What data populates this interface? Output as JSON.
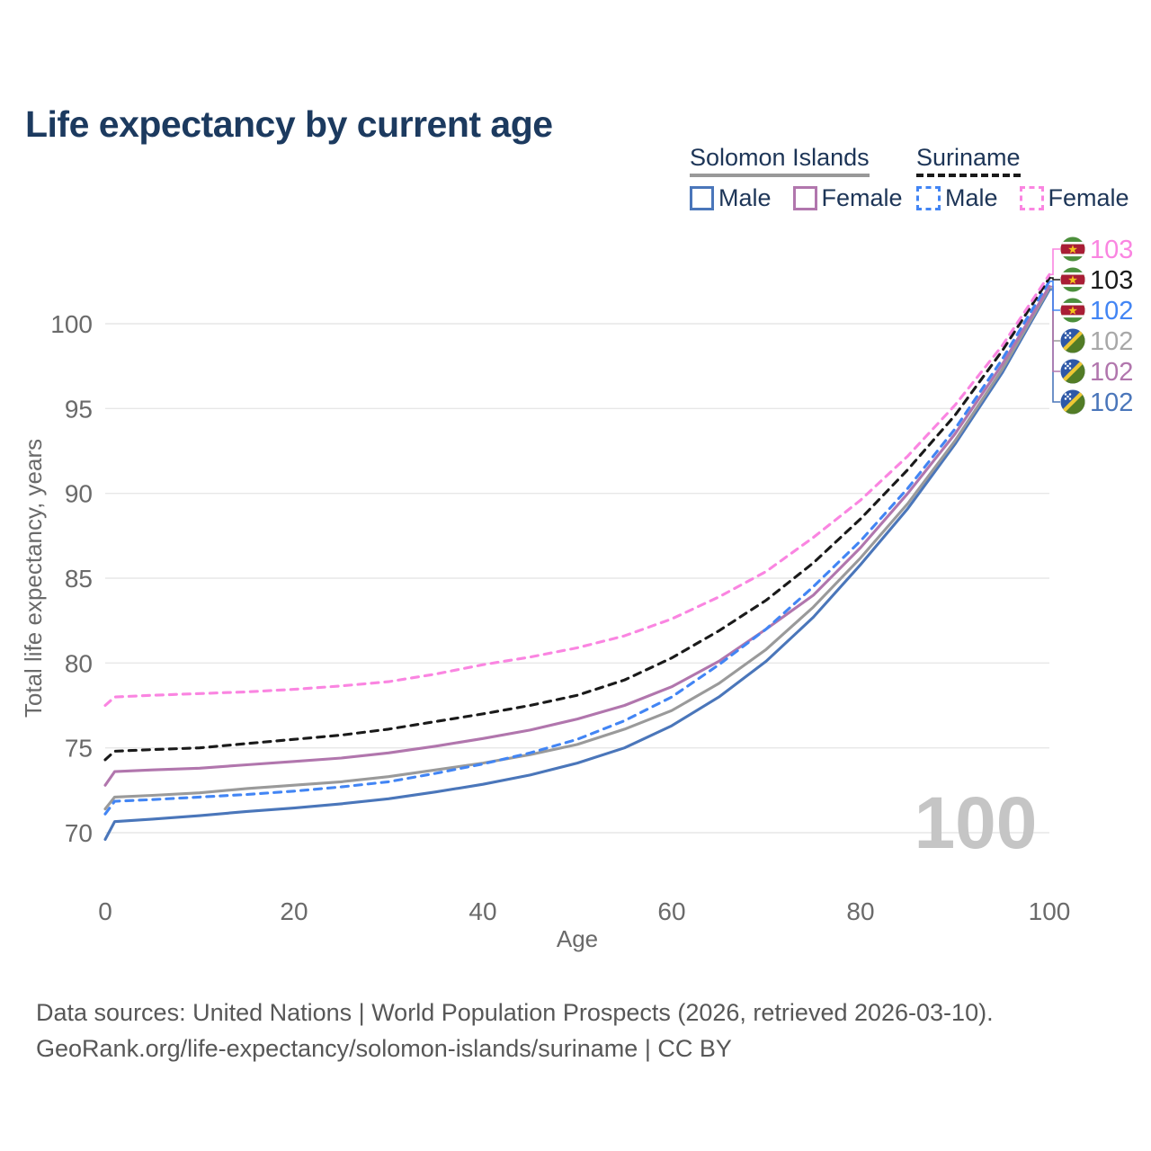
{
  "title": "Life expectancy by current age",
  "legend": {
    "groups": [
      {
        "country": "Solomon Islands",
        "underline_color": "#999999",
        "underline_style": "solid",
        "items": [
          {
            "label": "Male",
            "color": "#4a76ba",
            "dashed": false
          },
          {
            "label": "Female",
            "color": "#b176ad",
            "dashed": false
          }
        ]
      },
      {
        "country": "Suriname",
        "underline_color": "#1a1a1a",
        "underline_style": "dashed",
        "items": [
          {
            "label": "Male",
            "color": "#4285f4",
            "dashed": true
          },
          {
            "label": "Female",
            "color": "#fa85e1",
            "dashed": true
          }
        ]
      }
    ]
  },
  "chart_data": {
    "type": "line",
    "title": "Life expectancy by current age",
    "xlabel": "Age",
    "ylabel": "Total life expectancy, years",
    "xticks": [
      0,
      20,
      40,
      60,
      80,
      100
    ],
    "yticks": [
      70,
      75,
      80,
      85,
      90,
      95,
      100
    ],
    "xlim": [
      0,
      100
    ],
    "ylim": [
      69.5,
      103.5
    ],
    "grid": true,
    "watermark": "100",
    "x": [
      0,
      1,
      5,
      10,
      15,
      20,
      25,
      30,
      35,
      40,
      45,
      50,
      55,
      60,
      65,
      70,
      75,
      80,
      85,
      90,
      95,
      100
    ],
    "series": [
      {
        "name": "Solomon Islands Male",
        "slug": "solomon-islands-male",
        "flag": "solomon-islands",
        "color": "#4a76ba",
        "dashed": false,
        "row": 5,
        "end_label": "102",
        "end_label_color": "#4a76ba",
        "values": [
          69.6,
          70.65,
          70.8,
          71.0,
          71.25,
          71.45,
          71.7,
          72.0,
          72.4,
          72.85,
          73.4,
          74.1,
          75.0,
          76.3,
          78.0,
          80.1,
          82.7,
          85.8,
          89.1,
          92.9,
          97.1,
          102.0
        ]
      },
      {
        "name": "Solomon Islands",
        "slug": "solomon-islands-total",
        "flag": "solomon-islands",
        "color": "#9a9a9a",
        "dashed": false,
        "row": 3,
        "end_label": "102",
        "end_label_color": "#a8a8a8",
        "values": [
          71.4,
          72.1,
          72.2,
          72.35,
          72.6,
          72.8,
          73.0,
          73.3,
          73.7,
          74.1,
          74.6,
          75.2,
          76.1,
          77.2,
          78.8,
          80.8,
          83.3,
          86.2,
          89.4,
          93.1,
          97.3,
          102.1
        ]
      },
      {
        "name": "Solomon Islands Female",
        "slug": "solomon-islands-female",
        "flag": "solomon-islands",
        "color": "#b176ad",
        "dashed": false,
        "row": 4,
        "end_label": "102",
        "end_label_color": "#b176ad",
        "values": [
          72.8,
          73.6,
          73.7,
          73.8,
          74.0,
          74.2,
          74.4,
          74.7,
          75.1,
          75.55,
          76.05,
          76.7,
          77.5,
          78.6,
          80.1,
          82.0,
          84.0,
          86.8,
          90.0,
          93.5,
          97.6,
          102.2
        ]
      },
      {
        "name": "Suriname Male",
        "slug": "suriname-male",
        "flag": "suriname",
        "color": "#4285f4",
        "dashed": true,
        "row": 2,
        "end_label": "102",
        "end_label_color": "#4285f4",
        "values": [
          71.1,
          71.85,
          71.95,
          72.1,
          72.25,
          72.45,
          72.7,
          73.0,
          73.5,
          74.05,
          74.7,
          75.5,
          76.6,
          78.0,
          79.9,
          82.0,
          84.5,
          87.2,
          90.3,
          93.8,
          97.9,
          102.5
        ]
      },
      {
        "name": "Suriname",
        "slug": "suriname-total",
        "flag": "suriname",
        "color": "#1a1a1a",
        "dashed": true,
        "row": 1,
        "end_label": "103",
        "end_label_color": "#1a1a1a",
        "values": [
          74.3,
          74.8,
          74.9,
          75.0,
          75.25,
          75.5,
          75.75,
          76.1,
          76.55,
          77.0,
          77.5,
          78.1,
          79.0,
          80.3,
          81.9,
          83.7,
          85.9,
          88.5,
          91.4,
          94.6,
          98.4,
          102.7
        ]
      },
      {
        "name": "Suriname Female",
        "slug": "suriname-female",
        "flag": "suriname",
        "color": "#fa85e1",
        "dashed": true,
        "row": 0,
        "end_label": "103",
        "end_label_color": "#fa85e1",
        "values": [
          77.5,
          78.0,
          78.1,
          78.2,
          78.3,
          78.45,
          78.65,
          78.9,
          79.35,
          79.9,
          80.35,
          80.9,
          81.6,
          82.6,
          83.9,
          85.4,
          87.4,
          89.6,
          92.2,
          95.2,
          98.7,
          102.9
        ]
      }
    ]
  },
  "footer": {
    "line1": "Data sources: United Nations | World Population Prospects (2026, retrieved 2026-03-10).",
    "line2": "GeoRank.org/life-expectancy/solomon-islands/suriname | CC BY"
  }
}
